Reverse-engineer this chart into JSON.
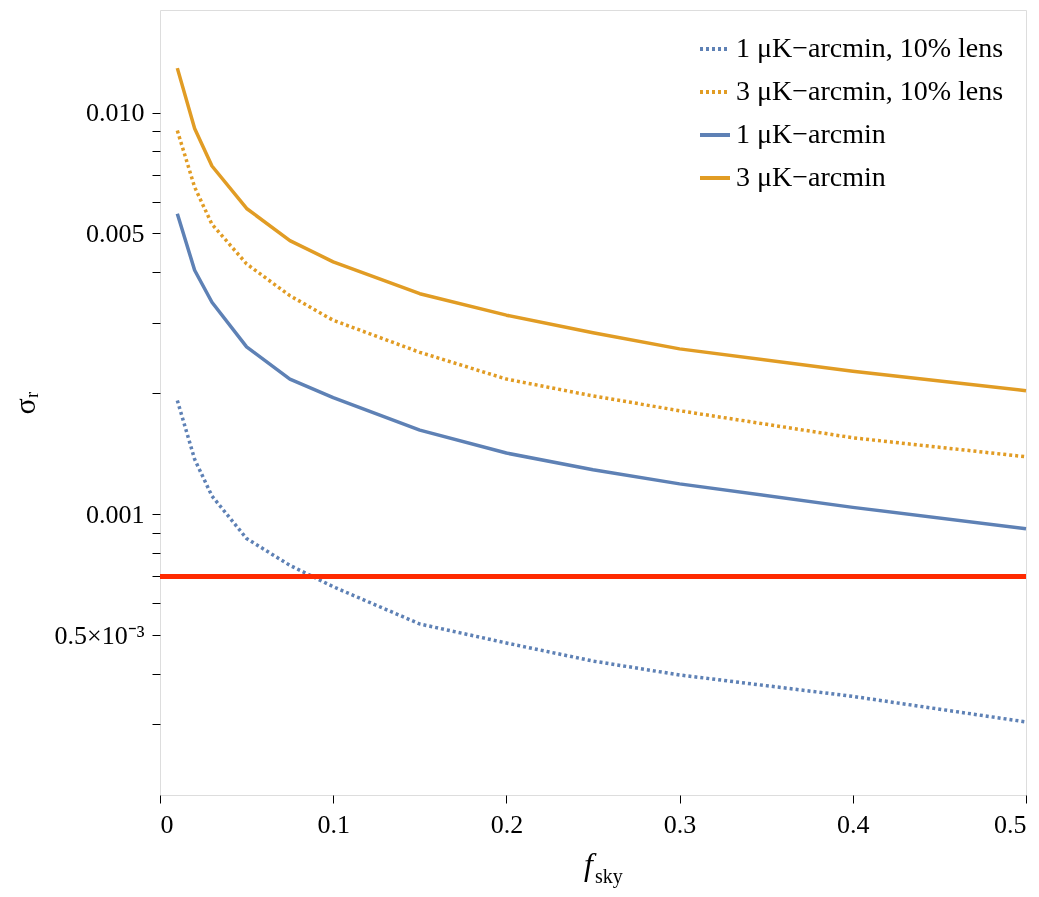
{
  "chart_data": {
    "type": "line",
    "xlabel": "f$_{sky}$",
    "ylabel": "σᵣ",
    "log": true,
    "grid": false,
    "legend": "top right",
    "marker": "none",
    "xlim": [
      0,
      0.5
    ],
    "xticks": [
      0,
      0.1,
      0.2,
      0.3,
      0.4,
      0.5
    ],
    "ylim": [
      0.0002,
      0.018
    ],
    "yticks": [
      {
        "value": 0.0003,
        "label": null
      },
      {
        "value": 0.0004,
        "label": null
      },
      {
        "value": 0.0005,
        "label": "0.5×10⁻³"
      },
      {
        "value": 0.0006,
        "label": null
      },
      {
        "value": 0.0007,
        "label": null
      },
      {
        "value": 0.0008,
        "label": null
      },
      {
        "value": 0.0009,
        "label": null
      },
      {
        "value": 0.001,
        "label": "0.001"
      },
      {
        "value": 0.002,
        "label": null
      },
      {
        "value": 0.003,
        "label": null
      },
      {
        "value": 0.004,
        "label": null
      },
      {
        "value": 0.005,
        "label": "0.005"
      },
      {
        "value": 0.006,
        "label": null
      },
      {
        "value": 0.007,
        "label": null
      },
      {
        "value": 0.008,
        "label": null
      },
      {
        "value": 0.009,
        "label": null
      },
      {
        "value": 0.01,
        "label": "0.010"
      }
    ],
    "x": [
      0.01,
      0.02,
      0.03,
      0.05,
      0.075,
      0.1,
      0.15,
      0.2,
      0.25,
      0.3,
      0.4,
      0.5
    ],
    "series": [
      {
        "name": "1 μK−arcmin, 10% lens",
        "color": "#5e81b5",
        "line_style": "dotted",
        "values": [
          0.00192,
          0.00137,
          0.00111,
          0.00087,
          0.000746,
          0.00066,
          0.000533,
          0.000478,
          0.000431,
          0.000398,
          0.000352,
          0.000304
        ]
      },
      {
        "name": "3 μK−arcmin, 10% lens",
        "color": "#e19c24",
        "line_style": "dotted",
        "values": [
          0.00902,
          0.00652,
          0.00527,
          0.0042,
          0.0035,
          0.00304,
          0.00253,
          0.00217,
          0.00197,
          0.00181,
          0.00155,
          0.00139
        ]
      },
      {
        "name": "1 μK−arcmin",
        "color": "#5e81b5",
        "line_style": "solid",
        "values": [
          0.0056,
          0.00405,
          0.00337,
          0.00261,
          0.00217,
          0.00195,
          0.00162,
          0.00142,
          0.00129,
          0.00119,
          0.00104,
          0.00092
        ]
      },
      {
        "name": "3 μK−arcmin",
        "color": "#e19c24",
        "line_style": "solid",
        "values": [
          0.0129,
          0.00913,
          0.00736,
          0.00577,
          0.0048,
          0.00425,
          0.00354,
          0.00313,
          0.00283,
          0.00258,
          0.00227,
          0.00203
        ]
      }
    ],
    "ref_lines": [
      {
        "axis": "y",
        "value": 0.0007,
        "color": "#ff2a00"
      }
    ]
  }
}
